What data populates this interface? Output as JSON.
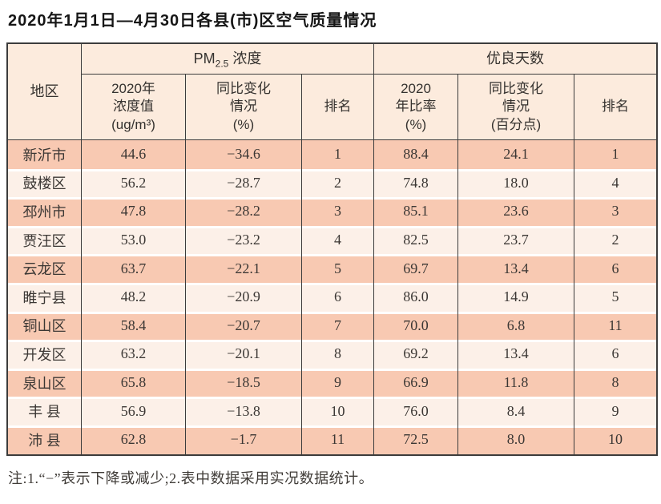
{
  "title": "2020年1月1日—4月30日各县(市)区空气质量情况",
  "colors": {
    "row_odd": "#f8c9b2",
    "row_even": "#fcf0e8",
    "header_bg": "#fcebdd",
    "border": "#3c3c3c"
  },
  "table": {
    "headers": {
      "region": "地区",
      "pm_group": {
        "pm": "PM",
        "sub": "2.5",
        "rest": " 浓度"
      },
      "gd_group": "优良天数",
      "pm_value": [
        "2020年",
        "浓度值",
        "(ug/m³)"
      ],
      "pm_change": [
        "同比变化",
        "情况",
        "(%)"
      ],
      "pm_rank": "排名",
      "gd_ratio": [
        "2020",
        "年比率",
        "(%)"
      ],
      "gd_change": [
        "同比变化",
        "情况",
        "(百分点)"
      ],
      "gd_rank": "排名"
    },
    "rows": [
      {
        "region": "新沂市",
        "pm_value": "44.6",
        "pm_change": "−34.6",
        "pm_rank": "1",
        "gd_ratio": "88.4",
        "gd_change": "24.1",
        "gd_rank": "1"
      },
      {
        "region": "鼓楼区",
        "pm_value": "56.2",
        "pm_change": "−28.7",
        "pm_rank": "2",
        "gd_ratio": "74.8",
        "gd_change": "18.0",
        "gd_rank": "4"
      },
      {
        "region": "邳州市",
        "pm_value": "47.8",
        "pm_change": "−28.2",
        "pm_rank": "3",
        "gd_ratio": "85.1",
        "gd_change": "23.6",
        "gd_rank": "3"
      },
      {
        "region": "贾汪区",
        "pm_value": "53.0",
        "pm_change": "−23.2",
        "pm_rank": "4",
        "gd_ratio": "82.5",
        "gd_change": "23.7",
        "gd_rank": "2"
      },
      {
        "region": "云龙区",
        "pm_value": "63.7",
        "pm_change": "−22.1",
        "pm_rank": "5",
        "gd_ratio": "69.7",
        "gd_change": "13.4",
        "gd_rank": "6"
      },
      {
        "region": "睢宁县",
        "pm_value": "48.2",
        "pm_change": "−20.9",
        "pm_rank": "6",
        "gd_ratio": "86.0",
        "gd_change": "14.9",
        "gd_rank": "5"
      },
      {
        "region": "铜山区",
        "pm_value": "58.4",
        "pm_change": "−20.7",
        "pm_rank": "7",
        "gd_ratio": "70.0",
        "gd_change": "6.8",
        "gd_rank": "11"
      },
      {
        "region": "开发区",
        "pm_value": "63.2",
        "pm_change": "−20.1",
        "pm_rank": "8",
        "gd_ratio": "69.2",
        "gd_change": "13.4",
        "gd_rank": "6"
      },
      {
        "region": "泉山区",
        "pm_value": "65.8",
        "pm_change": "−18.5",
        "pm_rank": "9",
        "gd_ratio": "66.9",
        "gd_change": "11.8",
        "gd_rank": "8"
      },
      {
        "region": "丰 县",
        "pm_value": "56.9",
        "pm_change": "−13.8",
        "pm_rank": "10",
        "gd_ratio": "76.0",
        "gd_change": "8.4",
        "gd_rank": "9"
      },
      {
        "region": "沛 县",
        "pm_value": "62.8",
        "pm_change": "−1.7",
        "pm_rank": "11",
        "gd_ratio": "72.5",
        "gd_change": "8.0",
        "gd_rank": "10"
      }
    ]
  },
  "footnote": "注:1.“−”表示下降或减少;2.表中数据采用实况数据统计。"
}
